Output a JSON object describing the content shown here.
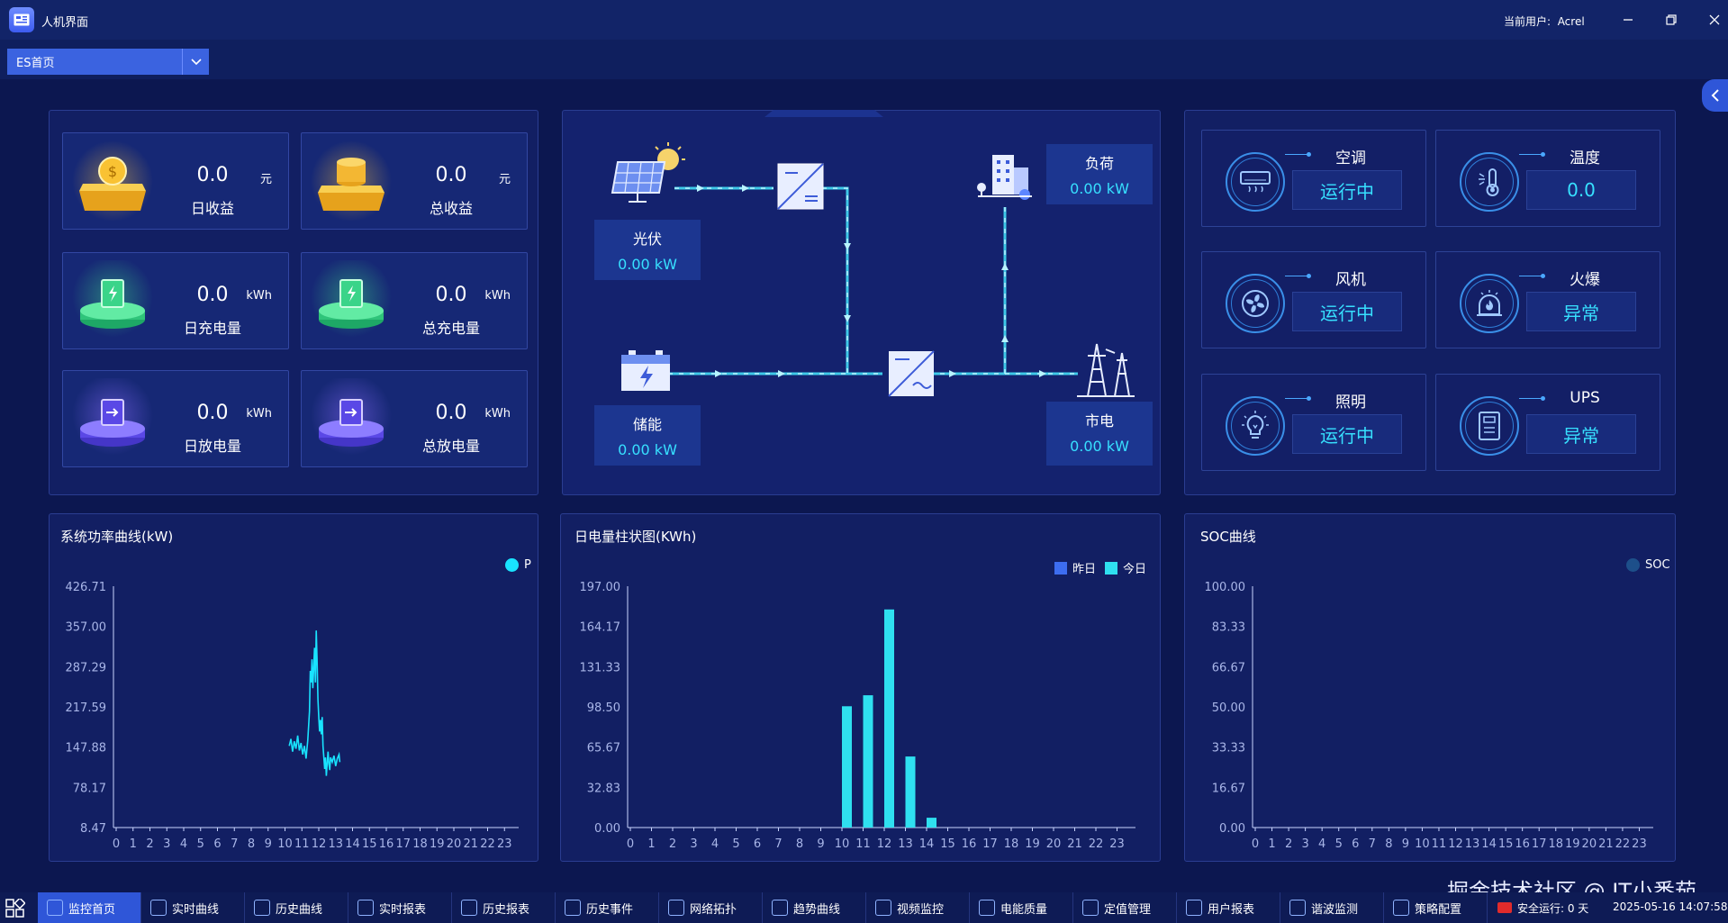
{
  "window": {
    "title": "人机界面",
    "user_label": "当前用户:",
    "user": "Acrel"
  },
  "page_select": {
    "value": "ES首页"
  },
  "stats": [
    {
      "value": "0.0",
      "unit": "元",
      "label": "日收益",
      "icon": "gold-coin-icon"
    },
    {
      "value": "0.0",
      "unit": "元",
      "label": "总收益",
      "icon": "coin-stack-icon"
    },
    {
      "value": "0.0",
      "unit": "kWh",
      "label": "日充电量",
      "icon": "charge-battery-icon"
    },
    {
      "value": "0.0",
      "unit": "kWh",
      "label": "总充电量",
      "icon": "charge-battery-icon"
    },
    {
      "value": "0.0",
      "unit": "kWh",
      "label": "日放电量",
      "icon": "discharge-battery-icon"
    },
    {
      "value": "0.0",
      "unit": "kWh",
      "label": "总放电量",
      "icon": "discharge-battery-icon"
    }
  ],
  "flow": {
    "pv": {
      "name": "光伏",
      "value": "0.00 kW"
    },
    "storage": {
      "name": "储能",
      "value": "0.00 kW"
    },
    "load": {
      "name": "负荷",
      "value": "0.00 kW"
    },
    "grid": {
      "name": "市电",
      "value": "0.00 kW"
    }
  },
  "devices": [
    {
      "name": "空调",
      "status": "运行中",
      "icon": "air-conditioner-icon"
    },
    {
      "name": "温度",
      "status": "0.0",
      "icon": "thermometer-icon"
    },
    {
      "name": "风机",
      "status": "运行中",
      "icon": "fan-icon"
    },
    {
      "name": "火爆",
      "status": "异常",
      "icon": "fire-alarm-icon"
    },
    {
      "name": "照明",
      "status": "运行中",
      "icon": "light-bulb-icon"
    },
    {
      "name": "UPS",
      "status": "异常",
      "icon": "ups-icon"
    }
  ],
  "chart_data": [
    {
      "type": "line",
      "title": "系统功率曲线(kW)",
      "series": [
        {
          "name": "P",
          "color": "#19e3ff"
        }
      ],
      "x_ticks": [
        "0",
        "1",
        "2",
        "3",
        "4",
        "5",
        "6",
        "7",
        "8",
        "9",
        "10",
        "11",
        "12",
        "13",
        "14",
        "15",
        "16",
        "17",
        "18",
        "19",
        "20",
        "21",
        "22",
        "23"
      ],
      "y_ticks": [
        "426.71",
        "357.00",
        "287.29",
        "217.59",
        "147.88",
        "78.17",
        "8.47"
      ],
      "ylim": [
        8.47,
        426.71
      ],
      "points": [
        [
          10.25,
          150
        ],
        [
          10.35,
          162
        ],
        [
          10.45,
          140
        ],
        [
          10.55,
          158
        ],
        [
          10.65,
          145
        ],
        [
          10.75,
          168
        ],
        [
          10.85,
          142
        ],
        [
          10.95,
          155
        ],
        [
          11.05,
          135
        ],
        [
          11.15,
          150
        ],
        [
          11.25,
          128
        ],
        [
          11.3,
          145
        ],
        [
          11.35,
          160
        ],
        [
          11.45,
          210
        ],
        [
          11.5,
          280
        ],
        [
          11.55,
          260
        ],
        [
          11.6,
          300
        ],
        [
          11.65,
          250
        ],
        [
          11.7,
          285
        ],
        [
          11.75,
          320
        ],
        [
          11.8,
          260
        ],
        [
          11.85,
          350
        ],
        [
          11.9,
          300
        ],
        [
          11.95,
          230
        ],
        [
          12.0,
          200
        ],
        [
          12.05,
          175
        ],
        [
          12.1,
          195
        ],
        [
          12.15,
          170
        ],
        [
          12.2,
          200
        ],
        [
          12.25,
          150
        ],
        [
          12.35,
          110
        ],
        [
          12.4,
          130
        ],
        [
          12.45,
          98
        ],
        [
          12.5,
          120
        ],
        [
          12.55,
          140
        ],
        [
          12.6,
          118
        ],
        [
          12.65,
          108
        ],
        [
          12.7,
          130
        ],
        [
          12.8,
          122
        ],
        [
          12.9,
          133
        ],
        [
          13.0,
          115
        ],
        [
          13.1,
          128
        ],
        [
          13.2,
          135
        ],
        [
          13.25,
          122
        ]
      ]
    },
    {
      "type": "bar",
      "title": "日电量柱状图(KWh)",
      "categories": [
        "0",
        "1",
        "2",
        "3",
        "4",
        "5",
        "6",
        "7",
        "8",
        "9",
        "10",
        "11",
        "12",
        "13",
        "14",
        "15",
        "16",
        "17",
        "18",
        "19",
        "20",
        "21",
        "22",
        "23"
      ],
      "y_ticks": [
        "197.00",
        "164.17",
        "131.33",
        "98.50",
        "65.67",
        "32.83",
        "0.00"
      ],
      "ylim": [
        0,
        197
      ],
      "series": [
        {
          "name": "昨日",
          "color": "#3d6df0",
          "values": [
            0,
            0,
            0,
            0,
            0,
            0,
            0,
            0,
            0,
            0,
            0,
            0,
            0,
            0,
            0,
            0,
            0,
            0,
            0,
            0,
            0,
            0,
            0,
            0
          ]
        },
        {
          "name": "今日",
          "color": "#2fe0f0",
          "values": [
            0,
            0,
            0,
            0,
            0,
            0,
            0,
            0,
            0,
            0,
            99,
            108,
            178,
            58,
            8,
            0,
            0,
            0,
            0,
            0,
            0,
            0,
            0,
            0
          ]
        }
      ]
    },
    {
      "type": "line",
      "title": "SOC曲线",
      "series": [
        {
          "name": "SOC",
          "color": "#1d4f8a"
        }
      ],
      "x_ticks": [
        "0",
        "1",
        "2",
        "3",
        "4",
        "5",
        "6",
        "7",
        "8",
        "9",
        "10",
        "11",
        "12",
        "13",
        "14",
        "15",
        "16",
        "17",
        "18",
        "19",
        "20",
        "21",
        "22",
        "23"
      ],
      "y_ticks": [
        "100.00",
        "83.33",
        "66.67",
        "50.00",
        "33.33",
        "16.67",
        "0.00"
      ],
      "ylim": [
        0,
        100
      ],
      "points": []
    }
  ],
  "taskbar": {
    "items": [
      "监控首页",
      "实时曲线",
      "历史曲线",
      "实时报表",
      "历史报表",
      "历史事件",
      "网络拓扑",
      "趋势曲线",
      "视频监控",
      "电能质量",
      "定值管理",
      "用户报表",
      "谐波监测",
      "策略配置"
    ],
    "safety": "安全运行: 0 天",
    "datetime": "2025-05-16 14:07:58"
  },
  "watermark": "掘金技术社区 @ IT小番茄"
}
